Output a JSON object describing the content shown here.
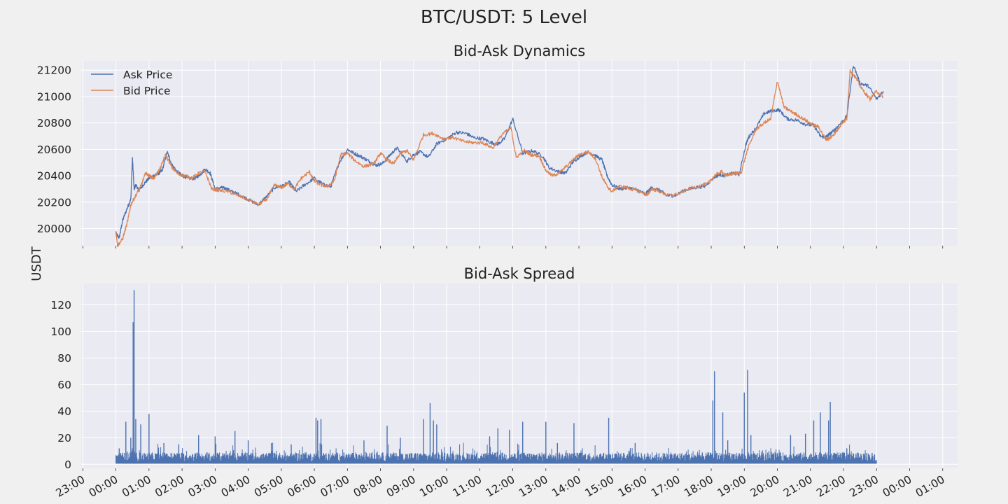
{
  "figure": {
    "suptitle": "BTC/USDT: 5 Level",
    "ylabel": "USDT"
  },
  "colors": {
    "background": "#f0f0f0",
    "axes_face": "#eaeaf2",
    "grid": "#ffffff",
    "ask": "#4c72b0",
    "bid": "#dd8452",
    "spread": "#4c72b0"
  },
  "chart_data": [
    {
      "type": "line",
      "title": "Bid-Ask Dynamics",
      "ylabel": "USDT",
      "ylim": [
        19870,
        21270
      ],
      "yticks": [
        20000,
        20200,
        20400,
        20600,
        20800,
        21000,
        21200
      ],
      "grid": true,
      "legend": "upper-left",
      "x_unit": "hours since 23:00",
      "xlim": [
        -0.05,
        26.45
      ],
      "series": [
        {
          "name": "Ask Price",
          "x": [
            1.0,
            1.1,
            1.2,
            1.35,
            1.45,
            1.5,
            1.55,
            1.6,
            1.7,
            1.85,
            2.0,
            2.2,
            2.3,
            2.4,
            2.55,
            2.7,
            2.85,
            3.0,
            3.2,
            3.4,
            3.55,
            3.7,
            3.85,
            4.0,
            4.2,
            4.35,
            4.5,
            4.7,
            5.0,
            5.3,
            5.55,
            5.8,
            6.0,
            6.25,
            6.45,
            6.7,
            7.0,
            7.3,
            7.5,
            7.75,
            8.0,
            8.2,
            8.45,
            8.65,
            8.85,
            9.05,
            9.3,
            9.5,
            9.8,
            10.0,
            10.2,
            10.45,
            10.7,
            11.0,
            11.3,
            11.6,
            11.8,
            12.1,
            12.35,
            12.55,
            12.75,
            13.0,
            13.3,
            13.6,
            13.9,
            14.1,
            14.4,
            14.6,
            14.8,
            15.0,
            15.25,
            15.45,
            15.7,
            15.85,
            16.0,
            16.25,
            16.5,
            16.8,
            17.0,
            17.2,
            17.45,
            17.65,
            17.9,
            18.2,
            18.5,
            18.8,
            19.1,
            19.25,
            19.4,
            19.65,
            19.85,
            20.05,
            20.15,
            20.35,
            20.6,
            20.8,
            21.05,
            21.3,
            21.6,
            21.85,
            22.1,
            22.3,
            22.45,
            22.55,
            22.7,
            22.85,
            23.1,
            23.3,
            23.5,
            23.75,
            24.0,
            24.2
          ],
          "y": [
            19960,
            19930,
            20060,
            20160,
            20220,
            20530,
            20300,
            20330,
            20290,
            20340,
            20380,
            20410,
            20420,
            20440,
            20580,
            20480,
            20430,
            20400,
            20380,
            20380,
            20410,
            20450,
            20420,
            20300,
            20310,
            20300,
            20280,
            20260,
            20220,
            20180,
            20240,
            20310,
            20320,
            20350,
            20280,
            20330,
            20380,
            20330,
            20320,
            20500,
            20600,
            20570,
            20540,
            20510,
            20480,
            20490,
            20560,
            20610,
            20510,
            20560,
            20580,
            20540,
            20640,
            20680,
            20730,
            20720,
            20690,
            20680,
            20650,
            20640,
            20680,
            20830,
            20570,
            20590,
            20550,
            20460,
            20430,
            20420,
            20500,
            20540,
            20580,
            20560,
            20520,
            20400,
            20330,
            20300,
            20310,
            20290,
            20260,
            20310,
            20290,
            20250,
            20250,
            20290,
            20310,
            20320,
            20390,
            20410,
            20400,
            20420,
            20410,
            20640,
            20700,
            20760,
            20870,
            20890,
            20900,
            20830,
            20820,
            20790,
            20780,
            20700,
            20690,
            20710,
            20740,
            20780,
            20850,
            21240,
            21100,
            21080,
            20980,
            21040
          ]
        },
        {
          "name": "Bid Price",
          "x": [
            1.0,
            1.05,
            1.2,
            1.35,
            1.45,
            1.6,
            1.75,
            1.9,
            2.0,
            2.15,
            2.35,
            2.5,
            2.7,
            2.9,
            3.1,
            3.3,
            3.5,
            3.7,
            3.9,
            4.1,
            4.4,
            4.7,
            5.0,
            5.3,
            5.55,
            5.8,
            6.0,
            6.2,
            6.4,
            6.6,
            6.85,
            7.0,
            7.2,
            7.4,
            7.6,
            7.8,
            8.0,
            8.25,
            8.5,
            8.8,
            9.0,
            9.2,
            9.4,
            9.6,
            9.8,
            10.0,
            10.3,
            10.6,
            10.9,
            11.2,
            11.5,
            11.8,
            12.1,
            12.4,
            12.7,
            12.95,
            13.1,
            13.35,
            13.55,
            13.8,
            14.0,
            14.2,
            14.4,
            14.7,
            15.0,
            15.3,
            15.5,
            15.7,
            15.85,
            16.0,
            16.2,
            16.45,
            16.7,
            16.95,
            17.05,
            17.2,
            17.45,
            17.7,
            18.0,
            18.3,
            18.6,
            18.9,
            19.1,
            19.3,
            19.5,
            19.7,
            19.9,
            20.1,
            20.35,
            20.6,
            20.8,
            21.0,
            21.2,
            21.4,
            21.6,
            21.85,
            22.05,
            22.25,
            22.45,
            22.55,
            22.65,
            22.8,
            22.95,
            23.1,
            23.2,
            23.35,
            23.55,
            23.8,
            24.0,
            24.2
          ],
          "y": [
            19980,
            19870,
            19920,
            20050,
            20180,
            20250,
            20320,
            20420,
            20400,
            20380,
            20460,
            20560,
            20460,
            20410,
            20400,
            20380,
            20420,
            20430,
            20300,
            20290,
            20280,
            20250,
            20220,
            20180,
            20220,
            20330,
            20310,
            20340,
            20300,
            20380,
            20430,
            20360,
            20330,
            20320,
            20360,
            20560,
            20570,
            20510,
            20470,
            20490,
            20570,
            20520,
            20490,
            20570,
            20590,
            20520,
            20710,
            20720,
            20680,
            20690,
            20660,
            20650,
            20650,
            20610,
            20720,
            20760,
            20540,
            20590,
            20560,
            20550,
            20440,
            20400,
            20420,
            20490,
            20560,
            20580,
            20530,
            20390,
            20320,
            20280,
            20320,
            20310,
            20290,
            20270,
            20250,
            20300,
            20280,
            20250,
            20260,
            20300,
            20320,
            20340,
            20400,
            20430,
            20400,
            20420,
            20420,
            20600,
            20750,
            20800,
            20830,
            21120,
            20920,
            20890,
            20860,
            20820,
            20790,
            20770,
            20680,
            20680,
            20700,
            20740,
            20800,
            20830,
            21200,
            21150,
            21060,
            20980,
            21040,
            21000
          ]
        }
      ]
    },
    {
      "type": "line",
      "title": "Bid-Ask Spread",
      "ylabel": "USDT",
      "ylim": [
        -3,
        136
      ],
      "yticks": [
        0,
        20,
        40,
        60,
        80,
        100,
        120
      ],
      "grid": true,
      "x_unit": "hours since 23:00",
      "xlim": [
        -0.05,
        26.45
      ],
      "baseline": {
        "x_start": 1.0,
        "x_end": 24.0,
        "low": 2,
        "high": 9
      },
      "series": [
        {
          "name": "",
          "spikes_x": [
            1.1,
            1.3,
            1.45,
            1.52,
            1.55,
            1.6,
            1.75,
            2.0,
            2.45,
            2.9,
            3.5,
            4.0,
            4.6,
            5.0,
            5.7,
            6.3,
            7.05,
            7.1,
            7.2,
            8.5,
            9.2,
            9.6,
            10.3,
            10.5,
            10.6,
            10.7,
            12.3,
            12.55,
            12.9,
            13.3,
            14.0,
            14.35,
            14.85,
            15.9,
            16.7,
            19.05,
            19.1,
            19.35,
            19.5,
            20.0,
            20.1,
            20.2,
            21.4,
            21.85,
            22.1,
            22.3,
            22.55,
            22.6,
            23.1
          ],
          "spikes_y": [
            12,
            32,
            20,
            107,
            131,
            34,
            30,
            38,
            16,
            15,
            22,
            21,
            25,
            18,
            16,
            15,
            35,
            33,
            34,
            18,
            29,
            20,
            34,
            46,
            33,
            30,
            21,
            27,
            26,
            32,
            32,
            16,
            31,
            35,
            16,
            48,
            70,
            39,
            18,
            54,
            71,
            22,
            22,
            23,
            33,
            39,
            33,
            47,
            12
          ]
        }
      ]
    }
  ],
  "x_tick_labels": [
    "23:00",
    "00:00",
    "01:00",
    "02:00",
    "03:00",
    "04:00",
    "05:00",
    "06:00",
    "07:00",
    "08:00",
    "09:00",
    "10:00",
    "11:00",
    "12:00",
    "13:00",
    "14:00",
    "15:00",
    "16:00",
    "17:00",
    "18:00",
    "19:00",
    "20:00",
    "21:00",
    "22:00",
    "23:00",
    "00:00",
    "01:00"
  ]
}
